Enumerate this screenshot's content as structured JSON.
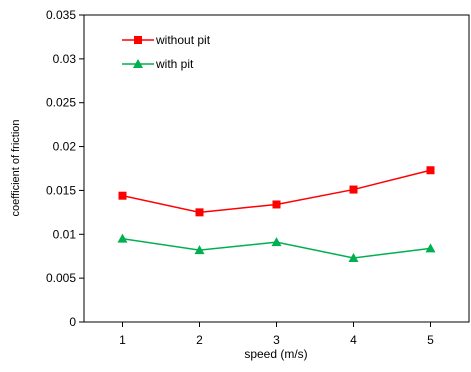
{
  "chart_data": {
    "type": "line",
    "xlabel": "speed (m/s)",
    "ylabel": "coefficient of friction",
    "x": [
      1,
      2,
      3,
      4,
      5
    ],
    "xticks": [
      "1",
      "2",
      "3",
      "4",
      "5"
    ],
    "xlim": [
      0.5,
      5.5
    ],
    "ylim": [
      0,
      0.035
    ],
    "yticks": [
      "0",
      "0.005",
      "0.01",
      "0.015",
      "0.02",
      "0.025",
      "0.03",
      "0.035"
    ],
    "grid": false,
    "legend_position": "top-left",
    "series": [
      {
        "name": "without pit",
        "values": [
          0.0144,
          0.0125,
          0.0134,
          0.0151,
          0.0173
        ],
        "color": "#ff0000",
        "marker": "square"
      },
      {
        "name": "with pit",
        "values": [
          0.0095,
          0.0082,
          0.0091,
          0.0073,
          0.0084
        ],
        "color": "#00b050",
        "marker": "triangle"
      }
    ]
  }
}
